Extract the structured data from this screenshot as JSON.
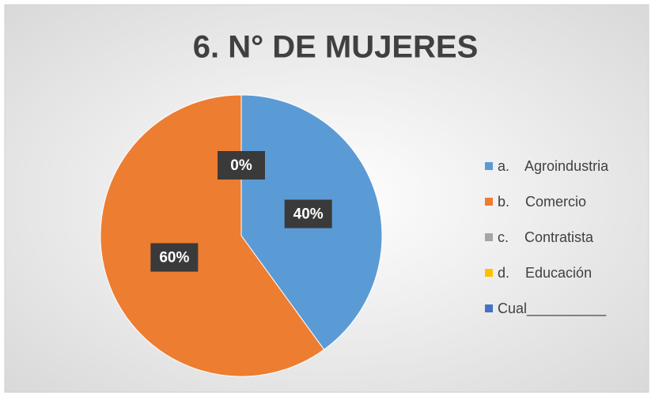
{
  "chart_data": {
    "type": "pie",
    "title": "6. N° DE MUJERES",
    "categories": [
      "a.    Agroindustria",
      "b.    Comercio",
      "c.    Contratista",
      "d.    Educación",
      "Cual__________"
    ],
    "values": [
      40,
      60,
      0,
      0,
      0
    ],
    "value_labels": [
      "40%",
      "60%",
      "0%",
      "0%",
      "0%"
    ],
    "colors": [
      "#5b9bd5",
      "#ed7d31",
      "#a5a5a5",
      "#ffc000",
      "#4472c4"
    ],
    "legend": "right"
  }
}
